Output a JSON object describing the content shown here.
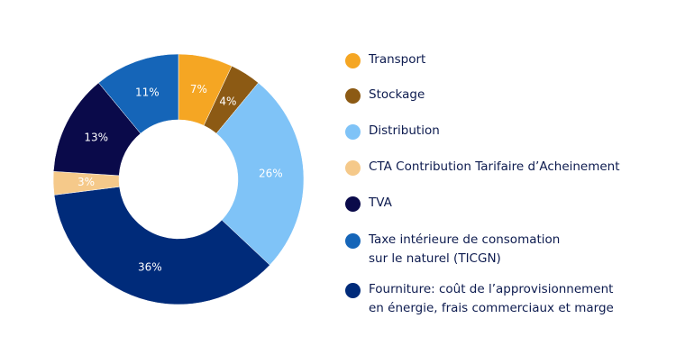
{
  "chart_data": {
    "type": "pie",
    "variant": "donut",
    "legend_position": "right",
    "slices": [
      {
        "label": "Transport",
        "value": 7,
        "value_label": "7%",
        "color": "#f5a623"
      },
      {
        "label": "Stockage",
        "value": 4,
        "value_label": "4%",
        "color": "#8c5a14"
      },
      {
        "label": "Distribution",
        "value": 26,
        "value_label": "26%",
        "color": "#7fc3f7"
      },
      {
        "label": "CTA Contribution Tarifaire d’Acheinement",
        "value": 36,
        "value_label": "36%",
        "color": "#002b7a"
      },
      {
        "label": "TVA",
        "value": 3,
        "value_label": "3%",
        "color": "#f5c98a"
      },
      {
        "label": "Taxe intérieure de consomation\nsur le naturel (TICGN)",
        "value": 13,
        "value_label": "13%",
        "color": "#0a0a4a"
      },
      {
        "label": "Fourniture: coût de l’approvisionnement\nen énergie, frais commerciaux et marge",
        "value": 11,
        "value_label": "11%",
        "color": "#1565b8"
      }
    ],
    "legend": [
      {
        "label": "Transport",
        "color": "#f5a623"
      },
      {
        "label": "Stockage",
        "color": "#8c5a14"
      },
      {
        "label": "Distribution",
        "color": "#7fc3f7"
      },
      {
        "label": "CTA Contribution Tarifaire d’Acheinement",
        "color": "#f5c98a"
      },
      {
        "label": "TVA",
        "color": "#0a0a4a"
      },
      {
        "label": "Taxe intérieure de consomation\nsur le naturel (TICGN)",
        "color": "#1565b8"
      },
      {
        "label": "Fourniture: coût de l’approvisionnement\nen énergie, frais commerciaux et marge",
        "color": "#002b7a"
      }
    ]
  }
}
